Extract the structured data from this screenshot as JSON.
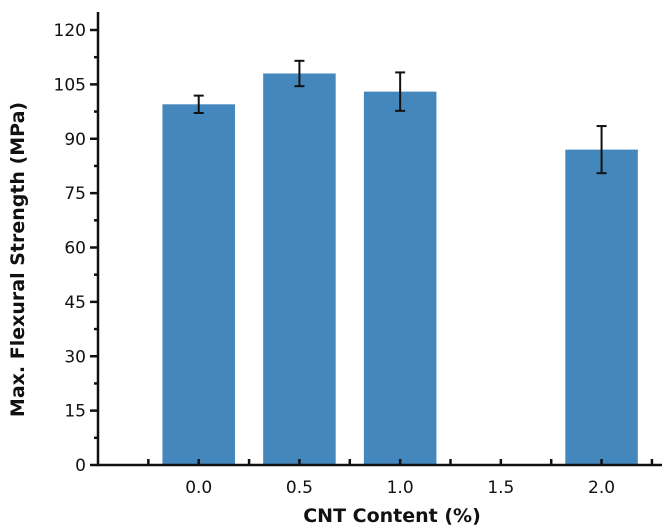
{
  "chart_data": {
    "type": "bar",
    "categories": [
      "0.0",
      "0.5",
      "1.0",
      "1.5",
      "2.0"
    ],
    "x": [
      0.0,
      0.5,
      1.0,
      1.5,
      2.0
    ],
    "values": [
      99.5,
      108.0,
      103.0,
      null,
      87.0
    ],
    "errors": [
      2.4,
      3.5,
      5.3,
      null,
      6.5
    ],
    "xlabel": "CNT Content (%)",
    "ylabel": "Max. Flexural Strength (MPa)",
    "ylim": [
      0,
      120
    ],
    "xlim": [
      -0.5,
      2.3
    ],
    "yticks": [
      0,
      15,
      30,
      45,
      60,
      75,
      90,
      105,
      120
    ],
    "xticks": [
      "0.0",
      "0.5",
      "1.0",
      "1.5",
      "2.0"
    ],
    "bar_color": "#4487bd",
    "grid": false,
    "legend": "none"
  }
}
